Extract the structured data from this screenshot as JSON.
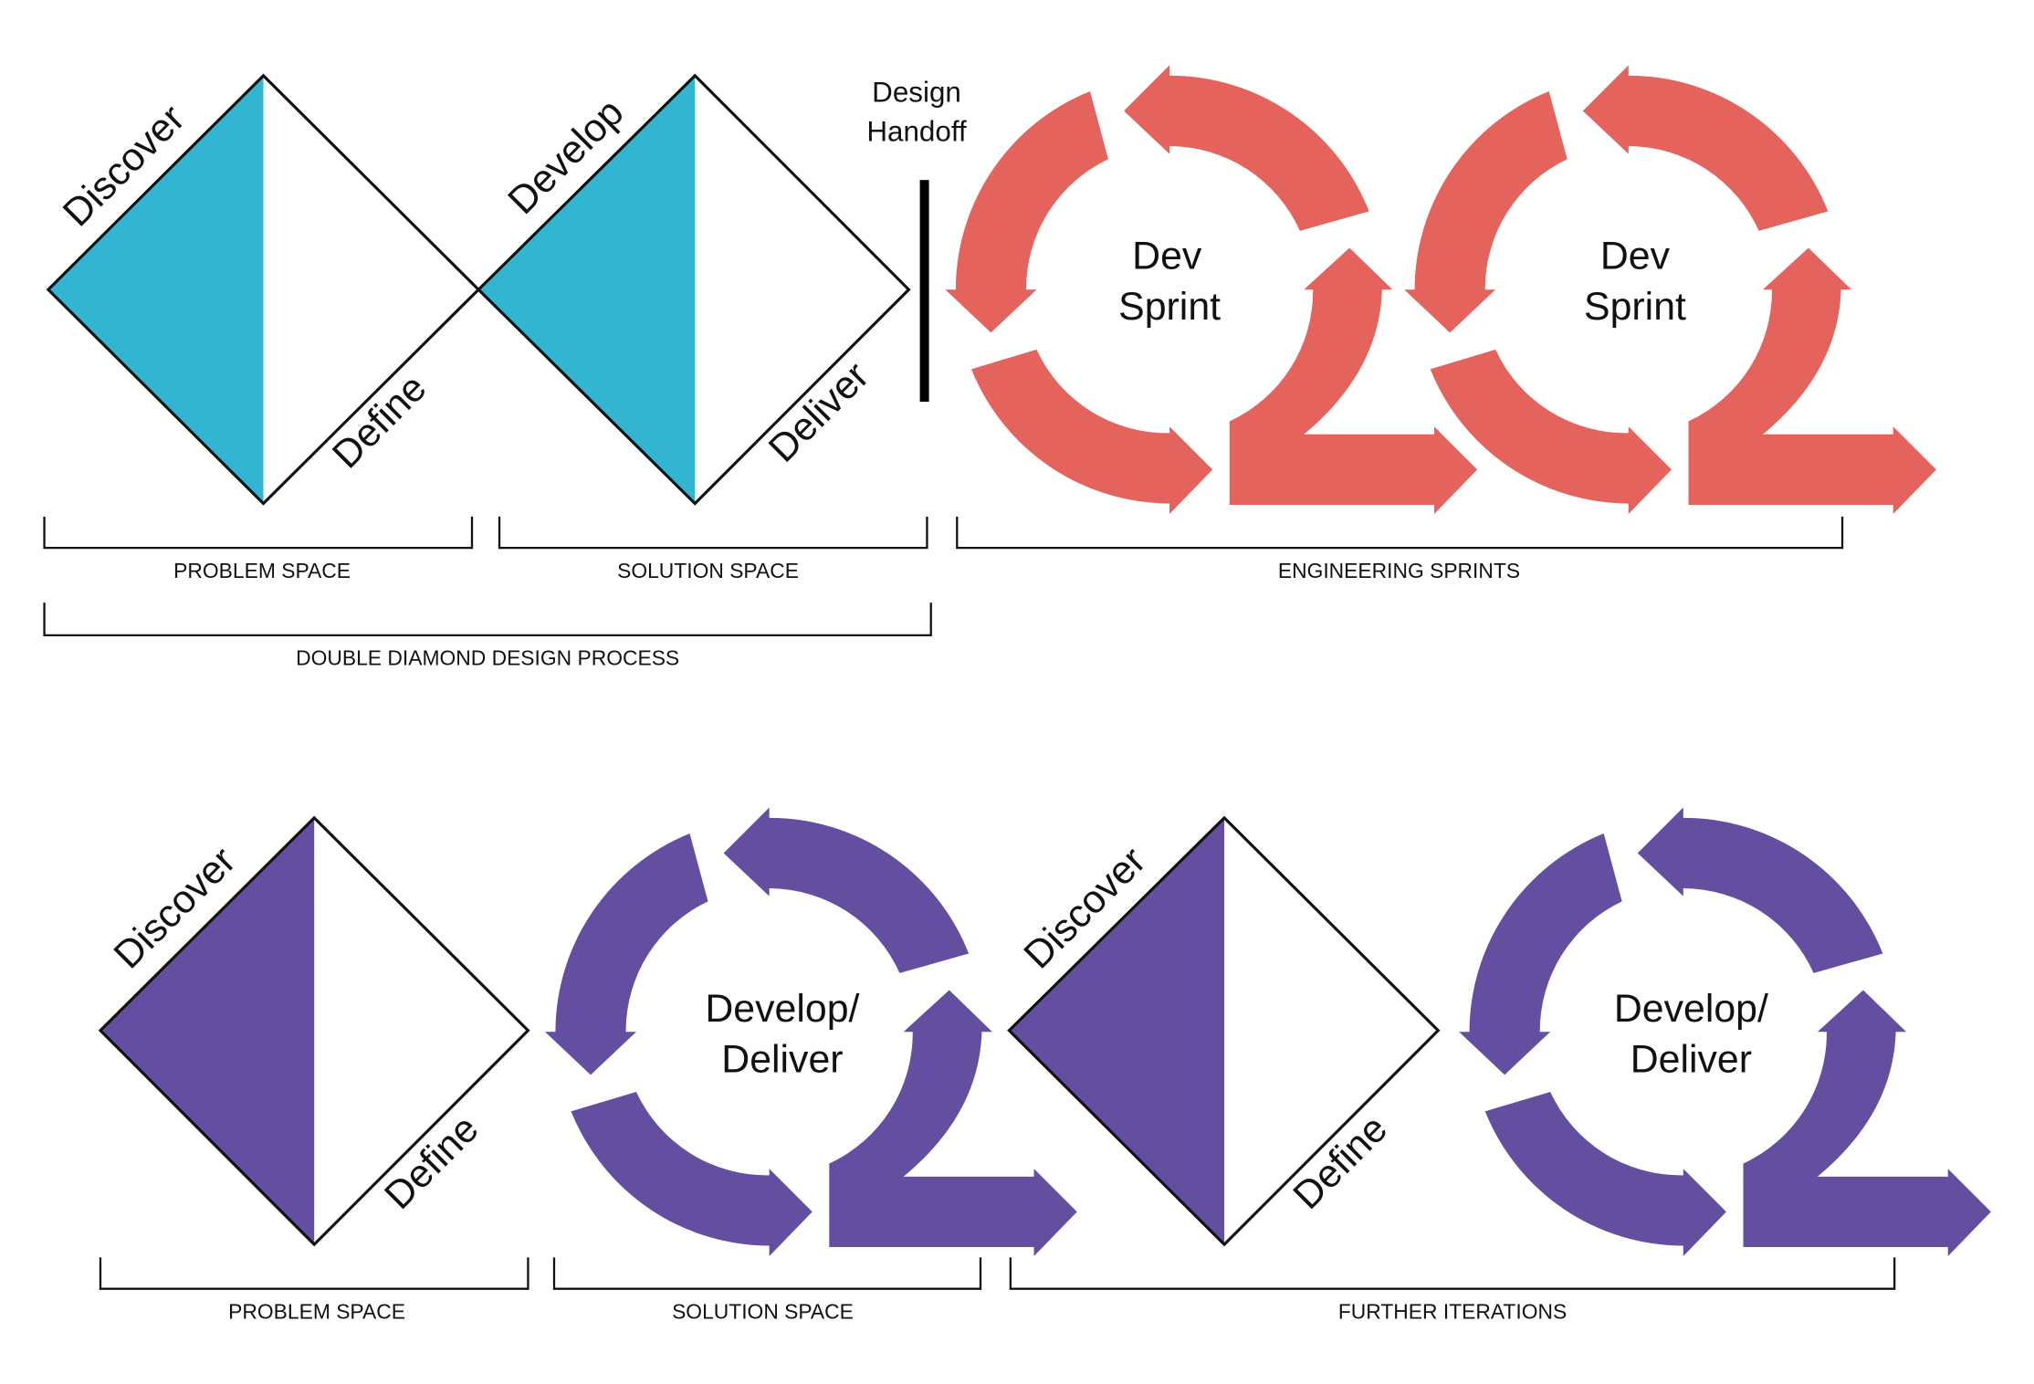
{
  "colors": {
    "teal": "#31b5d1",
    "coral": "#e4635c",
    "purple": "#634ea0",
    "line": "#111111"
  },
  "top_row": {
    "diamond1": {
      "left_label": "Discover",
      "right_label": "Define"
    },
    "diamond2": {
      "left_label": "Develop",
      "right_label": "Deliver"
    },
    "handoff": {
      "line1": "Design",
      "line2": "Handoff"
    },
    "sprint1": {
      "line1": "Dev",
      "line2": "Sprint"
    },
    "sprint2": {
      "line1": "Dev",
      "line2": "Sprint"
    },
    "brackets": {
      "problem": "PROBLEM SPACE",
      "solution": "SOLUTION SPACE",
      "engineering": "ENGINEERING SPRINTS",
      "double_diamond": "DOUBLE DIAMOND DESIGN PROCESS"
    }
  },
  "bottom_row": {
    "diamond1": {
      "left_label": "Discover",
      "right_label": "Define"
    },
    "cycle1": {
      "line1": "Develop/",
      "line2": "Deliver"
    },
    "diamond2": {
      "left_label": "Discover",
      "right_label": "Define"
    },
    "cycle2": {
      "line1": "Develop/",
      "line2": "Deliver"
    },
    "brackets": {
      "problem": "PROBLEM SPACE",
      "solution": "SOLUTION SPACE",
      "further": "FURTHER ITERATIONS"
    }
  }
}
